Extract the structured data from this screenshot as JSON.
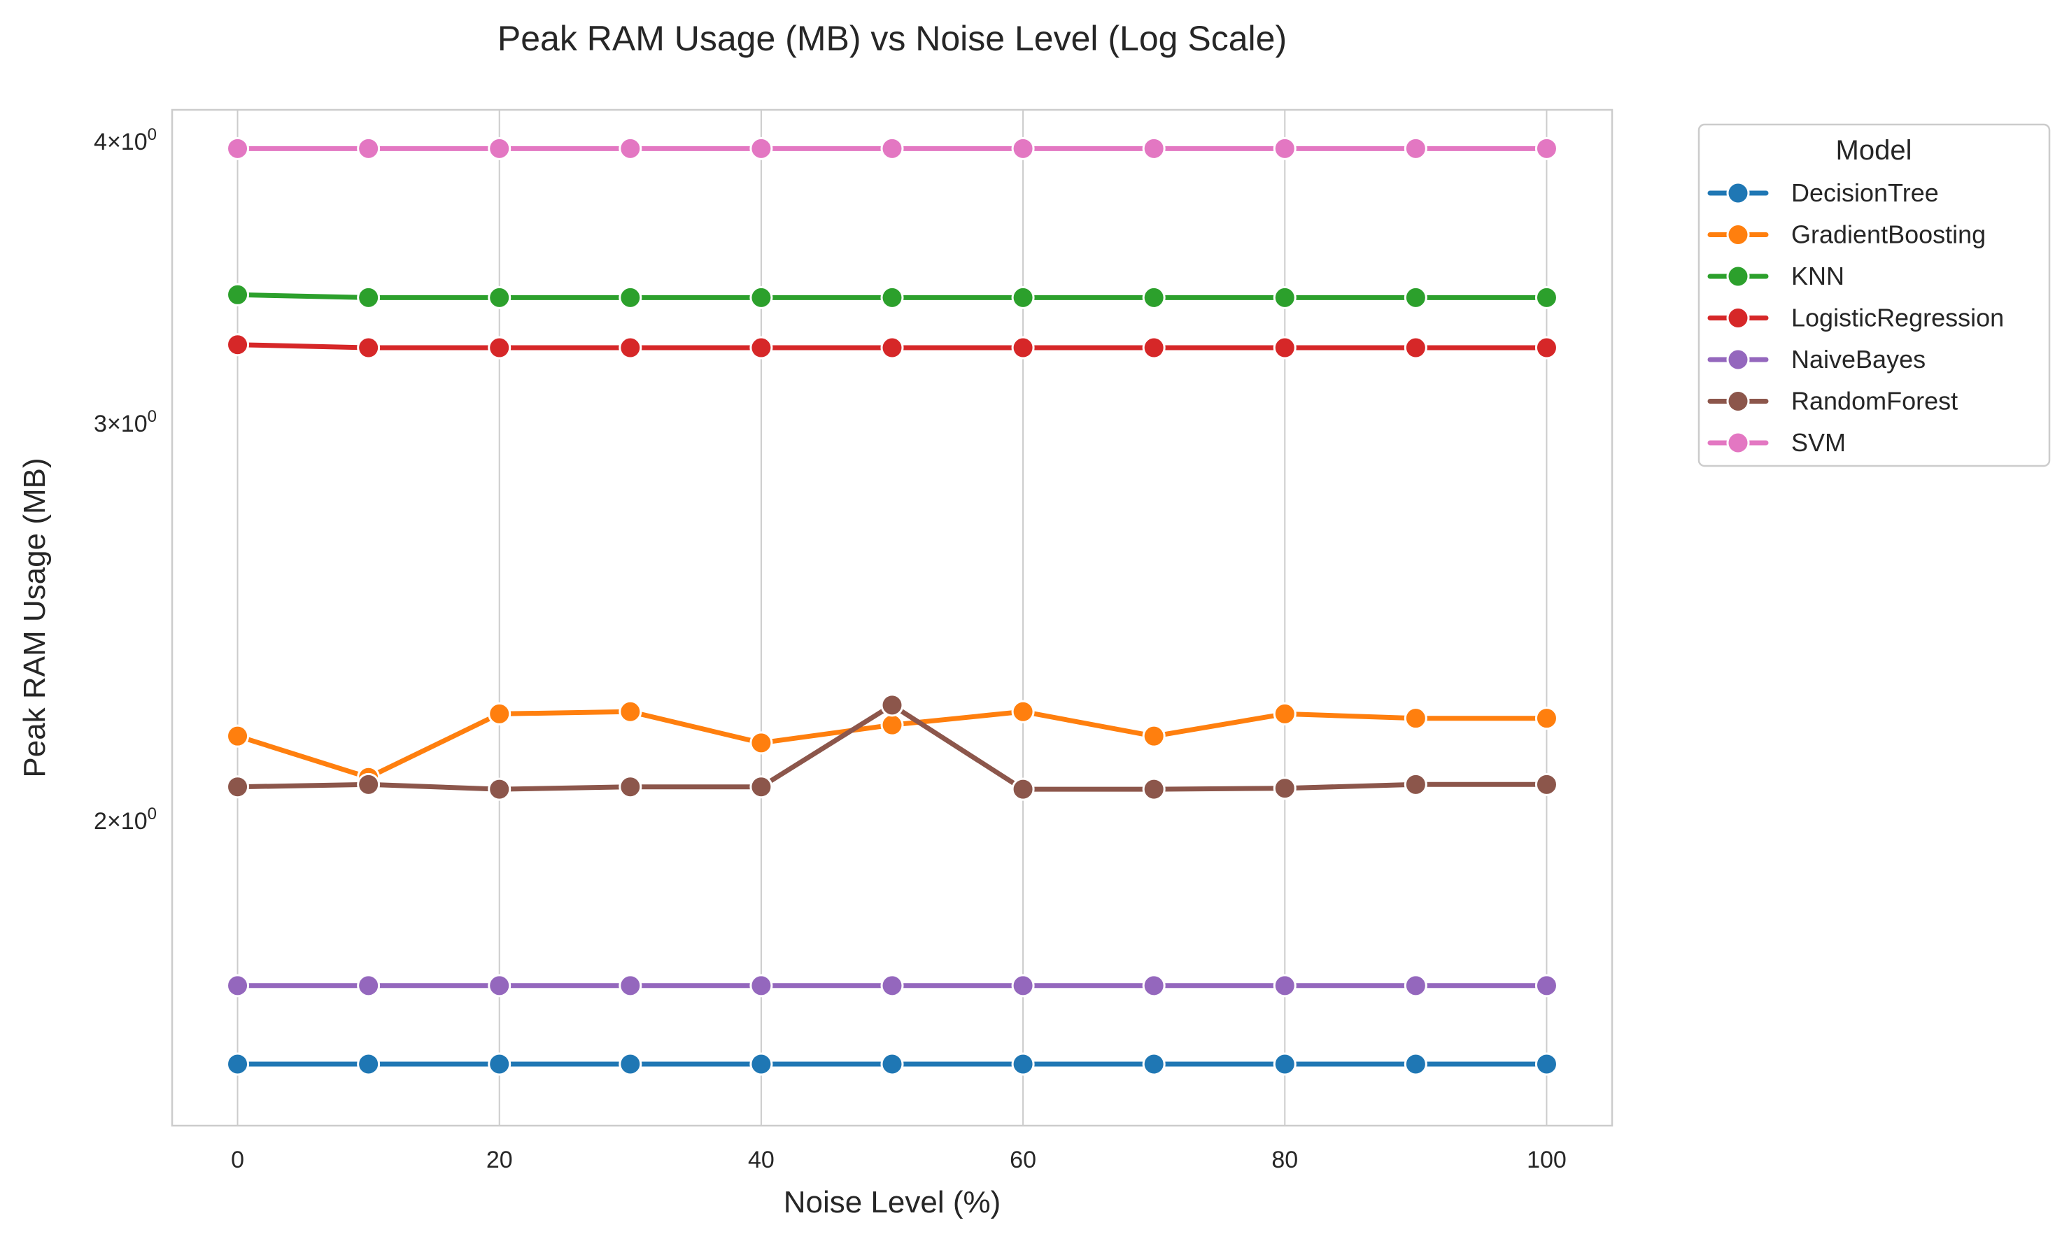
{
  "chart_data": {
    "type": "line",
    "title": "Peak RAM Usage (MB) vs Noise Level (Log Scale)",
    "xlabel": "Noise Level (%)",
    "ylabel": "Peak RAM Usage (MB)",
    "yscale": "log",
    "xlim": [
      -5,
      105
    ],
    "ylim": [
      1.465,
      4.13
    ],
    "x": [
      0,
      10,
      20,
      30,
      40,
      50,
      60,
      70,
      80,
      90,
      100
    ],
    "xticks": [
      0,
      20,
      40,
      60,
      80,
      100
    ],
    "xtick_labels": [
      "0",
      "20",
      "40",
      "60",
      "80",
      "100"
    ],
    "yticks": [
      {
        "value": 4,
        "base": "4",
        "mult": "×",
        "ten": "10",
        "exp": "0"
      },
      {
        "value": 3,
        "base": "3",
        "mult": "×",
        "ten": "10",
        "exp": "0"
      },
      {
        "value": 2,
        "base": "2",
        "mult": "×",
        "ten": "10",
        "exp": "0"
      }
    ],
    "grid": "vertical",
    "legend": {
      "title": "Model",
      "placement": "outside-upper-right"
    },
    "series": [
      {
        "name": "DecisionTree",
        "color": "#1f77b4",
        "values": [
          1.56,
          1.56,
          1.56,
          1.56,
          1.56,
          1.56,
          1.56,
          1.56,
          1.56,
          1.56,
          1.56
        ]
      },
      {
        "name": "GradientBoosting",
        "color": "#ff7f0e",
        "values": [
          2.18,
          2.09,
          2.23,
          2.235,
          2.165,
          2.205,
          2.235,
          2.18,
          2.23,
          2.22,
          2.22
        ]
      },
      {
        "name": "KNN",
        "color": "#2ca02c",
        "values": [
          3.42,
          3.41,
          3.41,
          3.41,
          3.41,
          3.41,
          3.41,
          3.41,
          3.41,
          3.41,
          3.41
        ]
      },
      {
        "name": "LogisticRegression",
        "color": "#d62728",
        "values": [
          3.25,
          3.24,
          3.24,
          3.24,
          3.24,
          3.24,
          3.24,
          3.24,
          3.24,
          3.24,
          3.24
        ]
      },
      {
        "name": "NaiveBayes",
        "color": "#9467bd",
        "values": [
          1.69,
          1.69,
          1.69,
          1.69,
          1.69,
          1.69,
          1.69,
          1.69,
          1.69,
          1.69,
          1.69
        ]
      },
      {
        "name": "RandomForest",
        "color": "#8c564b",
        "values": [
          2.07,
          2.075,
          2.065,
          2.07,
          2.07,
          2.25,
          2.065,
          2.065,
          2.067,
          2.075,
          2.075
        ]
      },
      {
        "name": "SVM",
        "color": "#e377c2",
        "values": [
          3.97,
          3.97,
          3.97,
          3.97,
          3.97,
          3.97,
          3.97,
          3.97,
          3.97,
          3.97,
          3.97
        ]
      }
    ]
  }
}
